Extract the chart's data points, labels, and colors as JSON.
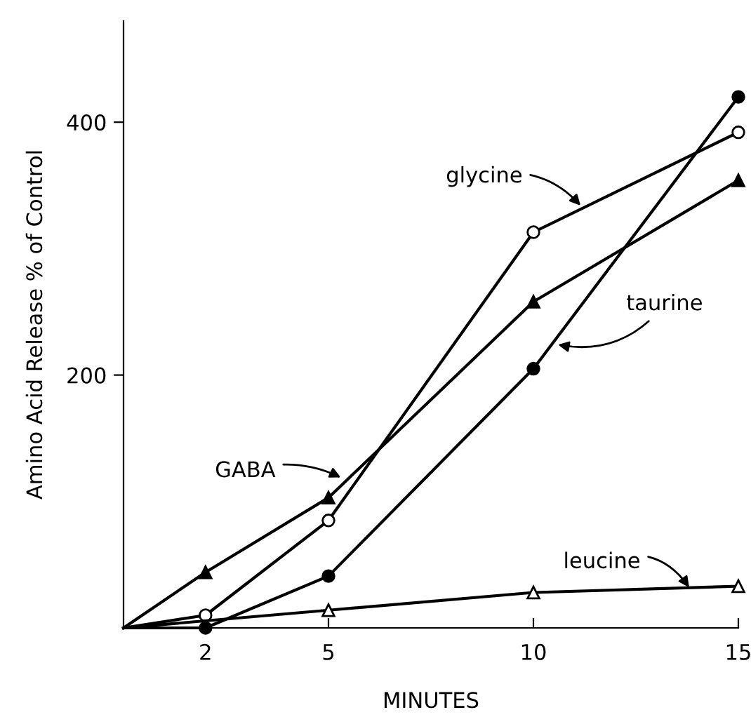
{
  "chart_data": {
    "type": "line",
    "xlabel": "MINUTES",
    "ylabel": "Amino Acid Release % of Control",
    "xlim": [
      0,
      15
    ],
    "ylim": [
      0,
      480
    ],
    "xticks": [
      2,
      5,
      10,
      15
    ],
    "yticks": [
      200,
      400
    ],
    "grid": false,
    "legend": "center",
    "line_style": "solid",
    "series": [
      {
        "name": "glycine",
        "color": "#000000",
        "marker": "circle",
        "x": [
          0,
          2,
          5,
          10,
          15
        ],
        "values": [
          0,
          10,
          85,
          313,
          392
        ]
      },
      {
        "name": "taurine",
        "color": "#000000",
        "marker": "circle",
        "x": [
          0,
          2,
          5,
          10,
          15
        ],
        "values": [
          0,
          0,
          41,
          205,
          420
        ]
      },
      {
        "name": "GABA",
        "color": "#000000",
        "marker": "triangle",
        "x": [
          0,
          2,
          5,
          10,
          15
        ],
        "values": [
          0,
          44,
          103,
          258,
          354
        ]
      },
      {
        "name": "leucine",
        "color": "#000000",
        "marker": "triangle",
        "x": [
          0,
          5,
          10,
          15
        ],
        "values": [
          0,
          14,
          28,
          33
        ]
      }
    ]
  }
}
